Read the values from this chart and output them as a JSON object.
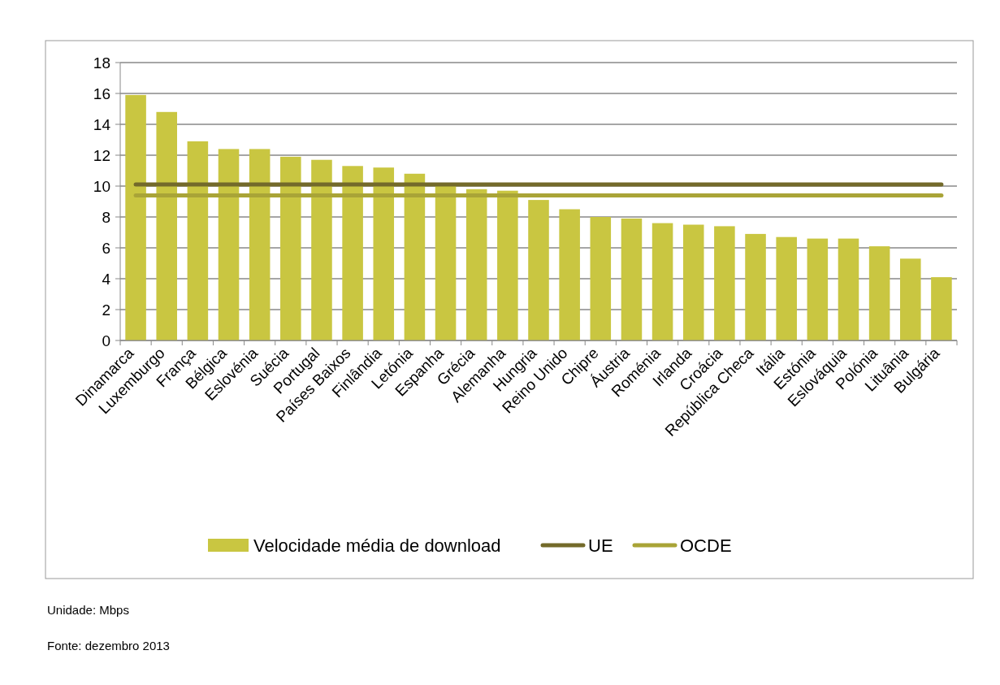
{
  "chart_data": {
    "type": "bar",
    "categories": [
      "Dinamarca",
      "Luxemburgo",
      "França",
      "Bélgica",
      "Eslovénia",
      "Suécia",
      "Portugal",
      "Países Baixos",
      "Finlândia",
      "Letónia",
      "Espanha",
      "Grécia",
      "Alemanha",
      "Hungria",
      "Reino Unido",
      "Chipre",
      "Áustria",
      "Roménia",
      "Irlanda",
      "Croácia",
      "República Checa",
      "Itália",
      "Estónia",
      "Eslováquia",
      "Polónia",
      "Lituânia",
      "Bulgária"
    ],
    "series": [
      {
        "name": "Velocidade média de download",
        "color": "#c9c641",
        "values": [
          15.9,
          14.8,
          12.9,
          12.4,
          12.4,
          11.9,
          11.7,
          11.3,
          11.2,
          10.8,
          10.0,
          9.8,
          9.7,
          9.1,
          8.5,
          8.0,
          7.9,
          7.6,
          7.5,
          7.4,
          6.9,
          6.7,
          6.6,
          6.6,
          6.1,
          5.3,
          4.1
        ]
      },
      {
        "name": "UE",
        "type": "line",
        "color": "#736a2a",
        "values": [
          10.1,
          10.1,
          10.1,
          10.1,
          10.1,
          10.1,
          10.1,
          10.1,
          10.1,
          10.1,
          10.1,
          10.1,
          10.1,
          10.1,
          10.1,
          10.1,
          10.1,
          10.1,
          10.1,
          10.1,
          10.1,
          10.1,
          10.1,
          10.1,
          10.1,
          10.1,
          10.1
        ]
      },
      {
        "name": "OCDE",
        "type": "line",
        "color": "#a9a437",
        "values": [
          9.4,
          9.4,
          9.4,
          9.4,
          9.4,
          9.4,
          9.4,
          9.4,
          9.4,
          9.4,
          9.4,
          9.4,
          9.4,
          9.4,
          9.4,
          9.4,
          9.4,
          9.4,
          9.4,
          9.4,
          9.4,
          9.4,
          9.4,
          9.4,
          9.4,
          9.4,
          9.4
        ]
      }
    ],
    "ylim": [
      0,
      18
    ],
    "yticks": [
      0,
      2,
      4,
      6,
      8,
      10,
      12,
      14,
      16,
      18
    ],
    "grid": "y",
    "legend": "bottom",
    "marker": "none",
    "line_style": "solid",
    "annotations": [
      "Unidade: Mbps",
      "Fonte: dezembro 2013"
    ]
  }
}
